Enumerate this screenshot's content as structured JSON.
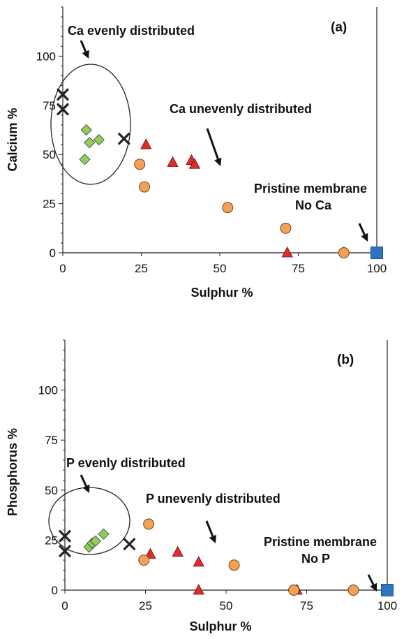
{
  "chart_data": [
    {
      "type": "scatter",
      "panel_label": "(a)",
      "xlabel": "Sulphur  %",
      "ylabel": "Calcium %",
      "xlim": [
        0,
        100
      ],
      "ylim": [
        0,
        125
      ],
      "xticks": [
        0,
        25,
        50,
        75,
        100
      ],
      "yticks": [
        0,
        25,
        50,
        75,
        100
      ],
      "grid": false,
      "series": [
        {
          "marker": "x",
          "color": "#222222",
          "points": [
            [
              0,
              80.5
            ],
            [
              0,
              73
            ],
            [
              19.5,
              58
            ]
          ]
        },
        {
          "marker": "diamond",
          "color": "#8ecf5a",
          "points": [
            [
              7.5,
              62.5
            ],
            [
              8.5,
              56
            ],
            [
              11.5,
              57.5
            ],
            [
              7,
              47.5
            ]
          ]
        },
        {
          "marker": "triangle",
          "color": "#e02b2b",
          "points": [
            [
              26.5,
              55
            ],
            [
              35,
              46
            ],
            [
              41,
              47
            ],
            [
              42,
              45
            ],
            [
              71.5,
              0
            ]
          ]
        },
        {
          "marker": "circle",
          "color": "#f6a055",
          "points": [
            [
              24.5,
              45
            ],
            [
              26,
              33.5
            ],
            [
              52.5,
              23
            ],
            [
              71,
              12.5
            ],
            [
              89.5,
              0
            ]
          ]
        },
        {
          "marker": "square",
          "color": "#2f74c0",
          "points": [
            [
              100,
              0
            ]
          ]
        }
      ],
      "annotations": [
        {
          "lines": [
            "Ca evenly distributed"
          ]
        },
        {
          "lines": [
            "Ca unevenly distributed"
          ]
        },
        {
          "lines": [
            "Pristine membrane",
            "No Ca"
          ]
        }
      ]
    },
    {
      "type": "scatter",
      "panel_label": "(b)",
      "xlabel": "Sulphur  %",
      "ylabel": "Phosphorus %",
      "xlim": [
        0,
        100
      ],
      "ylim": [
        0,
        125
      ],
      "xticks": [
        0,
        25,
        50,
        75,
        100
      ],
      "yticks": [
        0,
        25,
        50,
        75,
        100
      ],
      "grid": false,
      "series": [
        {
          "marker": "x",
          "color": "#222222",
          "points": [
            [
              0,
              27
            ],
            [
              0,
              19.5
            ],
            [
              20,
              23
            ]
          ]
        },
        {
          "marker": "diamond",
          "color": "#8ecf5a",
          "points": [
            [
              7.5,
              21.5
            ],
            [
              8.5,
              23.5
            ],
            [
              9.5,
              24.5
            ],
            [
              12,
              28
            ]
          ]
        },
        {
          "marker": "triangle",
          "color": "#e02b2b",
          "points": [
            [
              26.5,
              18
            ],
            [
              35,
              19
            ],
            [
              41.5,
              14
            ],
            [
              41.5,
              0
            ],
            [
              72,
              0
            ]
          ]
        },
        {
          "marker": "circle",
          "color": "#f6a055",
          "points": [
            [
              24.5,
              15
            ],
            [
              26,
              33
            ],
            [
              52.5,
              12.5
            ],
            [
              71,
              0
            ],
            [
              89.5,
              0
            ]
          ]
        },
        {
          "marker": "square",
          "color": "#2f74c0",
          "points": [
            [
              100,
              0
            ]
          ]
        }
      ],
      "annotations": [
        {
          "lines": [
            "P evenly distributed"
          ]
        },
        {
          "lines": [
            "P unevenly distributed"
          ]
        },
        {
          "lines": [
            "Pristine membrane",
            "No P"
          ]
        }
      ]
    }
  ]
}
